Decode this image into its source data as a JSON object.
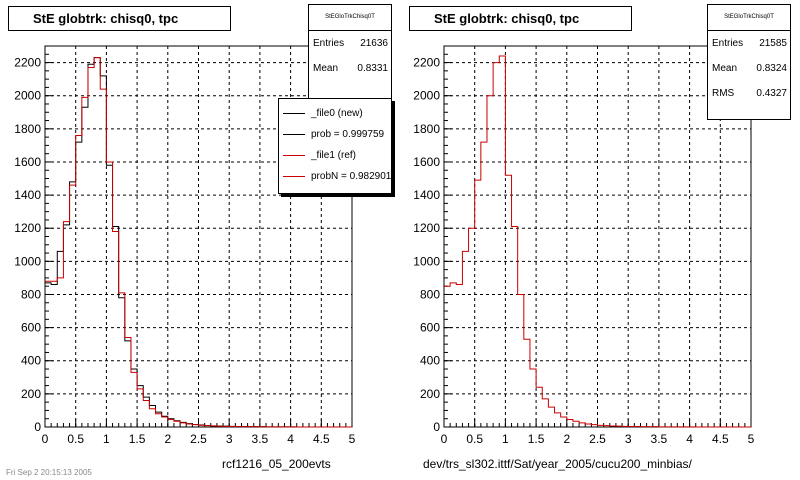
{
  "panels": [
    {
      "title": "StE globtrk: chisq0, tpc",
      "stats": {
        "name": "StEGloTrkChisq0T",
        "entries_label": "Entries",
        "entries": "21636",
        "mean_label": "Mean",
        "mean": "0.8331"
      },
      "legend": {
        "items": [
          {
            "label": "_file0 (new)",
            "color": "#000000"
          },
          {
            "label": "prob = 0.999759",
            "color": "#000000"
          },
          {
            "label": "_file1 (ref)",
            "color": "#cc0000"
          },
          {
            "label": "probN = 0.982901",
            "color": "#cc0000"
          }
        ]
      },
      "x_title": "rcf1216_05_200evts"
    },
    {
      "title": "StE globtrk: chisq0, tpc",
      "stats": {
        "name": "StEGloTrkChisq0T",
        "entries_label": "Entries",
        "entries": "21585",
        "mean_label": "Mean",
        "mean": "0.8324",
        "rms_label": "RMS",
        "rms": "0.4327"
      },
      "x_title": "dev/trs_sl302.ittf/Sat/year_2005/cucu200_minbias/"
    }
  ],
  "footer": "Fri Sep 2 20:15:13 2005",
  "chart_data": [
    {
      "type": "histogram",
      "title": "StE globtrk: chisq0, tpc",
      "xlabel": "rcf1216_05_200evts",
      "xlim": [
        0,
        5
      ],
      "ylim": [
        0,
        2300
      ],
      "xticks": [
        "0",
        "0.5",
        "1",
        "1.5",
        "2",
        "2.5",
        "3",
        "3.5",
        "4",
        "4.5",
        "5"
      ],
      "yticks": [
        "0",
        "200",
        "400",
        "600",
        "800",
        "1000",
        "1200",
        "1400",
        "1600",
        "1800",
        "2000",
        "2200"
      ],
      "grid": true,
      "legend_position": "top-right",
      "bin_width": 0.1,
      "series": [
        {
          "name": "_file0 (new)",
          "color": "#000000",
          "values": [
            870,
            860,
            1060,
            1220,
            1480,
            1720,
            1930,
            2190,
            2230,
            2120,
            1580,
            1210,
            780,
            520,
            350,
            250,
            180,
            130,
            90,
            65,
            50,
            38,
            28,
            20,
            15,
            12,
            9,
            7,
            6,
            5,
            4,
            3,
            3,
            2,
            2,
            2,
            1,
            1,
            1,
            1,
            1,
            0,
            0,
            0,
            0,
            0,
            0,
            0,
            0,
            0
          ]
        },
        {
          "name": "_file1 (ref)",
          "color": "#cc0000",
          "values": [
            880,
            880,
            900,
            1240,
            1460,
            1760,
            1990,
            2170,
            2230,
            2040,
            1600,
            1180,
            810,
            540,
            330,
            230,
            160,
            110,
            80,
            60,
            45,
            35,
            25,
            18,
            14,
            10,
            8,
            6,
            5,
            4,
            3,
            3,
            2,
            2,
            2,
            1,
            1,
            1,
            1,
            1,
            1,
            0,
            0,
            0,
            0,
            0,
            0,
            0,
            0,
            0
          ]
        }
      ]
    },
    {
      "type": "histogram",
      "title": "StE globtrk: chisq0, tpc",
      "xlabel": "dev/trs_sl302.ittf/Sat/year_2005/cucu200_minbias/",
      "xlim": [
        0,
        5
      ],
      "ylim": [
        0,
        2300
      ],
      "xticks": [
        "0",
        "0.5",
        "1",
        "1.5",
        "2",
        "2.5",
        "3",
        "3.5",
        "4",
        "4.5",
        "5"
      ],
      "yticks": [
        "0",
        "200",
        "400",
        "600",
        "800",
        "1000",
        "1200",
        "1400",
        "1600",
        "1800",
        "2000",
        "2200"
      ],
      "grid": true,
      "bin_width": 0.1,
      "series": [
        {
          "name": "",
          "color": "#cc0000",
          "values": [
            850,
            870,
            860,
            1060,
            1200,
            1490,
            1720,
            2000,
            2200,
            2240,
            1520,
            1210,
            800,
            530,
            350,
            240,
            170,
            120,
            85,
            60,
            45,
            35,
            25,
            18,
            14,
            10,
            8,
            6,
            5,
            4,
            3,
            3,
            2,
            2,
            2,
            1,
            1,
            1,
            1,
            1,
            1,
            0,
            0,
            0,
            0,
            0,
            0,
            0,
            0,
            0
          ]
        }
      ]
    }
  ]
}
